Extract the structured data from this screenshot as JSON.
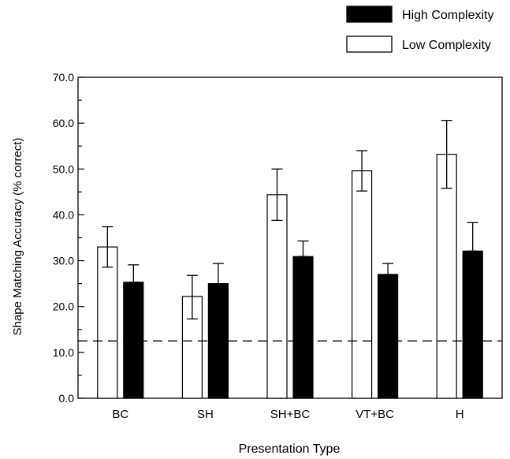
{
  "chart_data": {
    "type": "bar",
    "title": "",
    "xlabel": "Presentation Type",
    "ylabel": "Shape Matching Accuracy (% correct)",
    "ylim": [
      0,
      70
    ],
    "ytick_labels": [
      "0.0",
      "10.0",
      "20.0",
      "30.0",
      "40.0",
      "50.0",
      "60.0",
      "70.0"
    ],
    "categories": [
      "BC",
      "SH",
      "SH+BC",
      "VT+BC",
      "H"
    ],
    "legend_position": "top-right",
    "series": [
      {
        "name": "Low Complexity",
        "fill": "#ffffff",
        "values": [
          33.0,
          22.2,
          44.4,
          49.6,
          53.2
        ],
        "err_low": [
          28.6,
          17.3,
          38.8,
          45.2,
          45.8
        ],
        "err_high": [
          37.4,
          26.8,
          50.0,
          54.0,
          60.6
        ]
      },
      {
        "name": "High Complexity",
        "fill": "#000000",
        "values": [
          25.3,
          25.0,
          30.9,
          27.0,
          32.1
        ],
        "err_low": [
          25.3,
          25.0,
          30.9,
          27.0,
          32.1
        ],
        "err_high": [
          29.1,
          29.4,
          34.3,
          29.4,
          38.3
        ]
      }
    ],
    "reference_line": {
      "value": 12.5,
      "style": "dashed"
    }
  }
}
